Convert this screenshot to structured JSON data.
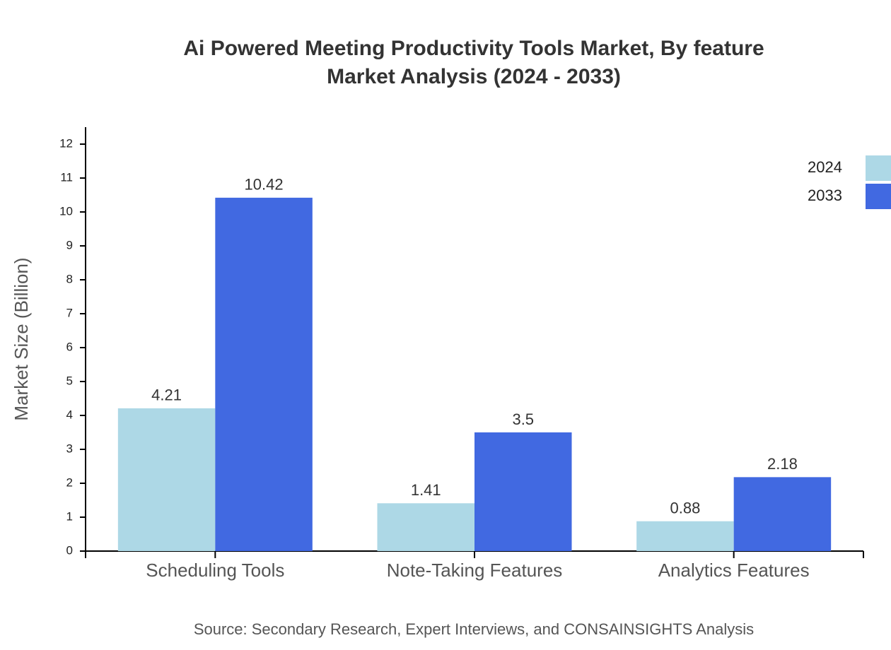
{
  "chart_data": {
    "type": "bar",
    "title": "Ai Powered Meeting Productivity Tools Market, By feature",
    "subtitle": "Market Analysis (2024 - 2033)",
    "y_label": "Market Size (Billion)",
    "source": "Source: Secondary Research, Expert Interviews, and CONSAINSIGHTS Analysis",
    "categories": [
      "Scheduling Tools",
      "Note-Taking Features",
      "Analytics Features"
    ],
    "series": [
      {
        "name": "2024",
        "color": "#add8e6",
        "values": [
          4.21,
          1.41,
          0.88
        ]
      },
      {
        "name": "2033",
        "color": "#4169e1",
        "values": [
          10.42,
          3.5,
          2.18
        ]
      }
    ],
    "ylim": [
      0,
      12.5
    ],
    "yticks": [
      0,
      1,
      2,
      3,
      4,
      5,
      6,
      7,
      8,
      9,
      10,
      11,
      12
    ],
    "legend": "top-right"
  }
}
